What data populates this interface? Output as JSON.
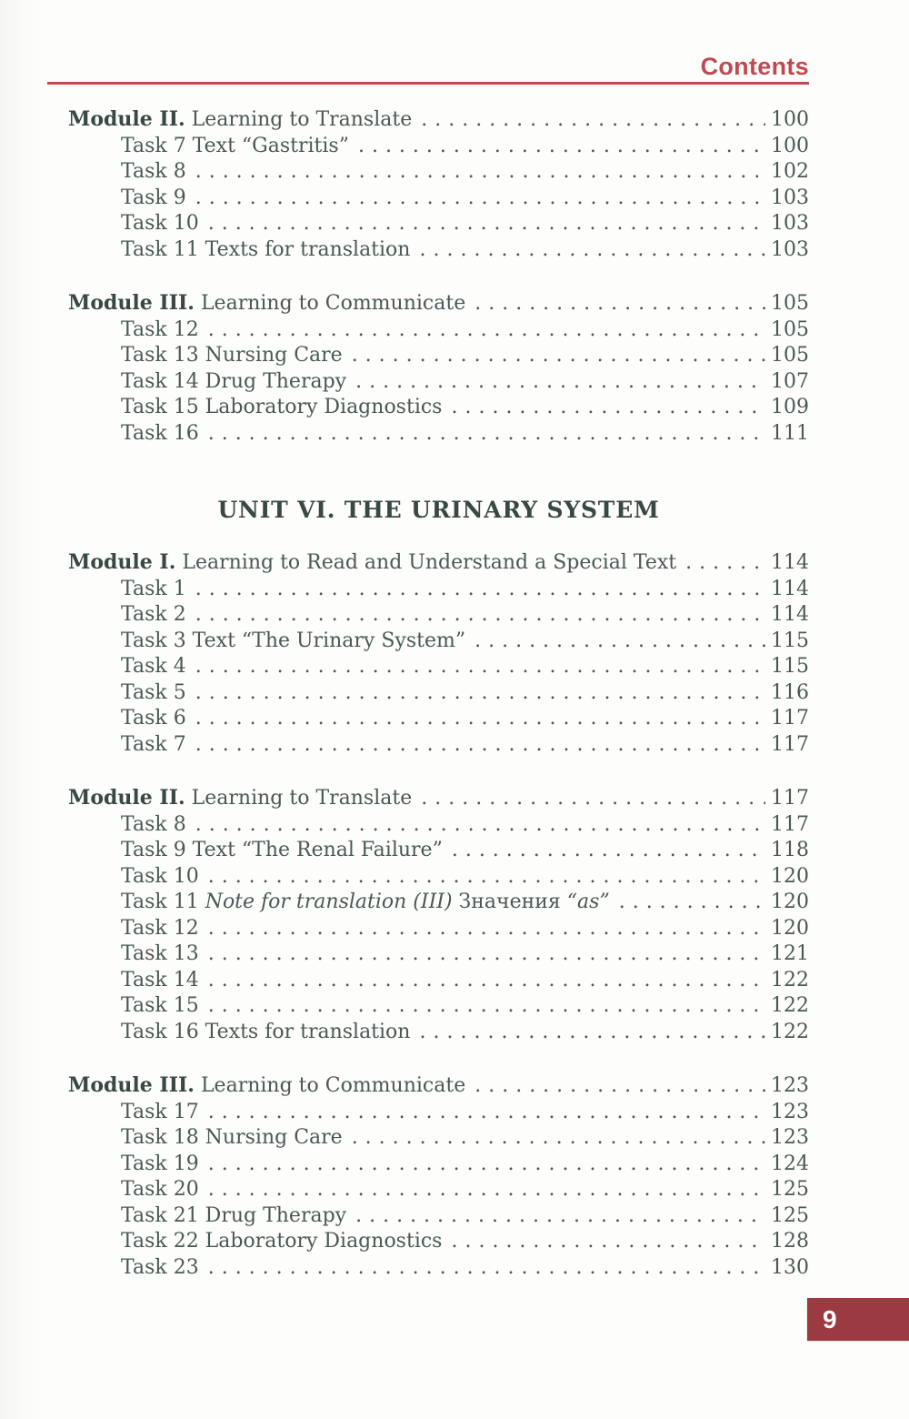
{
  "header": {
    "title": "Contents"
  },
  "colors": {
    "accent": "#bf4b52",
    "badge_bg": "#9c3a42",
    "text": "#4a5953",
    "text_strong": "#394842"
  },
  "page_badge": {
    "number": "9"
  },
  "toc": {
    "sections": [
      {
        "kind": "module",
        "title": [
          {
            "t": "Module II.",
            "b": 1
          },
          {
            "t": " Learning to Translate"
          }
        ],
        "page": "100",
        "items": [
          {
            "label": [
              {
                "t": "Task 7 Text “Gastritis”"
              }
            ],
            "page": "100"
          },
          {
            "label": [
              {
                "t": "Task 8"
              }
            ],
            "page": "102"
          },
          {
            "label": [
              {
                "t": "Task 9"
              }
            ],
            "page": "103"
          },
          {
            "label": [
              {
                "t": "Task 10"
              }
            ],
            "page": "103"
          },
          {
            "label": [
              {
                "t": "Task 11 Texts for translation"
              }
            ],
            "page": "103"
          }
        ]
      },
      {
        "kind": "module",
        "title": [
          {
            "t": "Module III.",
            "b": 1
          },
          {
            "t": " Learning to Communicate"
          }
        ],
        "page": "105",
        "items": [
          {
            "label": [
              {
                "t": "Task 12"
              }
            ],
            "page": "105"
          },
          {
            "label": [
              {
                "t": "Task 13 Nursing Care"
              }
            ],
            "page": "105"
          },
          {
            "label": [
              {
                "t": "Task 14 Drug Therapy"
              }
            ],
            "page": "107"
          },
          {
            "label": [
              {
                "t": "Task 15 Laboratory Diagnostics"
              }
            ],
            "page": "109"
          },
          {
            "label": [
              {
                "t": "Task 16"
              }
            ],
            "page": "111"
          }
        ]
      },
      {
        "kind": "unit",
        "text": "UNIT VI. THE URINARY SYSTEM"
      },
      {
        "kind": "module",
        "title": [
          {
            "t": "Module I.",
            "b": 1
          },
          {
            "t": " Learning to Read and Understand a Special Text"
          }
        ],
        "page": "114",
        "items": [
          {
            "label": [
              {
                "t": "Task 1"
              }
            ],
            "page": "114"
          },
          {
            "label": [
              {
                "t": "Task 2"
              }
            ],
            "page": "114"
          },
          {
            "label": [
              {
                "t": "Task 3 Text “The Urinary System”"
              }
            ],
            "page": "115"
          },
          {
            "label": [
              {
                "t": "Task 4"
              }
            ],
            "page": "115"
          },
          {
            "label": [
              {
                "t": "Task 5"
              }
            ],
            "page": "116"
          },
          {
            "label": [
              {
                "t": "Task 6"
              }
            ],
            "page": "117"
          },
          {
            "label": [
              {
                "t": "Task 7"
              }
            ],
            "page": "117"
          }
        ]
      },
      {
        "kind": "module",
        "title": [
          {
            "t": "Module II.",
            "b": 1
          },
          {
            "t": " Learning to Translate"
          }
        ],
        "page": "117",
        "items": [
          {
            "label": [
              {
                "t": "Task 8"
              }
            ],
            "page": "117"
          },
          {
            "label": [
              {
                "t": "Task 9 Text “The Renal Failure”"
              }
            ],
            "page": "118"
          },
          {
            "label": [
              {
                "t": "Task 10"
              }
            ],
            "page": "120"
          },
          {
            "label": [
              {
                "t": "Task 11 "
              },
              {
                "t": "Note for translation (III)",
                "i": 1
              },
              {
                "t": " Значения "
              },
              {
                "t": "“as”",
                "i": 1
              }
            ],
            "page": "120"
          },
          {
            "label": [
              {
                "t": "Task 12"
              }
            ],
            "page": "120"
          },
          {
            "label": [
              {
                "t": "Task 13"
              }
            ],
            "page": "121"
          },
          {
            "label": [
              {
                "t": "Task 14"
              }
            ],
            "page": "122"
          },
          {
            "label": [
              {
                "t": "Task 15"
              }
            ],
            "page": "122"
          },
          {
            "label": [
              {
                "t": "Task 16 Texts for translation"
              }
            ],
            "page": "122"
          }
        ]
      },
      {
        "kind": "module",
        "title": [
          {
            "t": "Module III.",
            "b": 1
          },
          {
            "t": " Learning to Communicate"
          }
        ],
        "page": "123",
        "items": [
          {
            "label": [
              {
                "t": "Task 17"
              }
            ],
            "page": "123"
          },
          {
            "label": [
              {
                "t": "Task 18 Nursing Care"
              }
            ],
            "page": "123"
          },
          {
            "label": [
              {
                "t": "Task 19"
              }
            ],
            "page": "124"
          },
          {
            "label": [
              {
                "t": "Task 20"
              }
            ],
            "page": "125"
          },
          {
            "label": [
              {
                "t": "Task 21 Drug Therapy"
              }
            ],
            "page": "125"
          },
          {
            "label": [
              {
                "t": "Task 22 Laboratory Diagnostics"
              }
            ],
            "page": "128"
          },
          {
            "label": [
              {
                "t": "Task 23"
              }
            ],
            "page": "130"
          }
        ]
      }
    ]
  }
}
